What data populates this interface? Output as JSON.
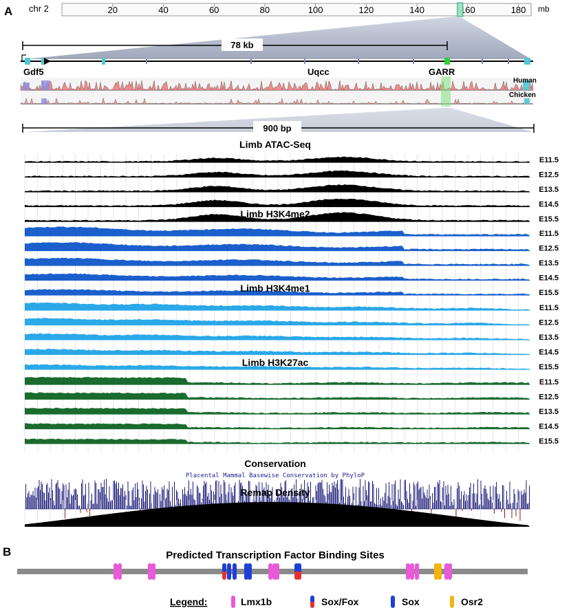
{
  "panel_a": {
    "label": "A",
    "chromosome": {
      "name": "chr 2",
      "unit": "mb",
      "ticks": [
        "20",
        "40",
        "60",
        "80",
        "100",
        "120",
        "140",
        "160",
        "180"
      ],
      "tick_values": [
        20,
        40,
        60,
        80,
        100,
        120,
        140,
        160,
        180
      ],
      "range": [
        0,
        185
      ],
      "highlight_mb": 157
    },
    "scale_kb": "78 kb",
    "genes": [
      "Gdf5",
      "Uqcc",
      "GARR"
    ],
    "conservation_species": [
      "Human",
      "Chicken"
    ],
    "scale_bp": "900 bp",
    "stages": [
      "E11.5",
      "E12.5",
      "E13.5",
      "E14.5",
      "E15.5"
    ],
    "tracks": [
      {
        "title": "Limb ATAC-Seq",
        "color": "#000000"
      },
      {
        "title": "Limb H3K4me2",
        "color": "#1a5fcc"
      },
      {
        "title": "Limb H3K4me1",
        "color": "#2aa8e8"
      },
      {
        "title": "Limb H3K27ac",
        "color": "#1a6b2e"
      }
    ],
    "conservation_title": "Conservation",
    "conservation_caption": "Placental Mammal Basewise Conservation by PhyloP",
    "remap_title": "Remap Density"
  },
  "panel_b": {
    "label": "B",
    "title": "Predicted Transcription Factor Binding Sites",
    "legend_title": "Legend:",
    "legend": [
      {
        "name": "Lmx1b",
        "color": "#e85ad8"
      },
      {
        "name": "Sox/Fox",
        "color": "#1e3fd6",
        "color2": "#e83030"
      },
      {
        "name": "Sox",
        "color": "#1e3fd6"
      },
      {
        "name": "Osr2",
        "color": "#f2b410"
      }
    ]
  }
}
